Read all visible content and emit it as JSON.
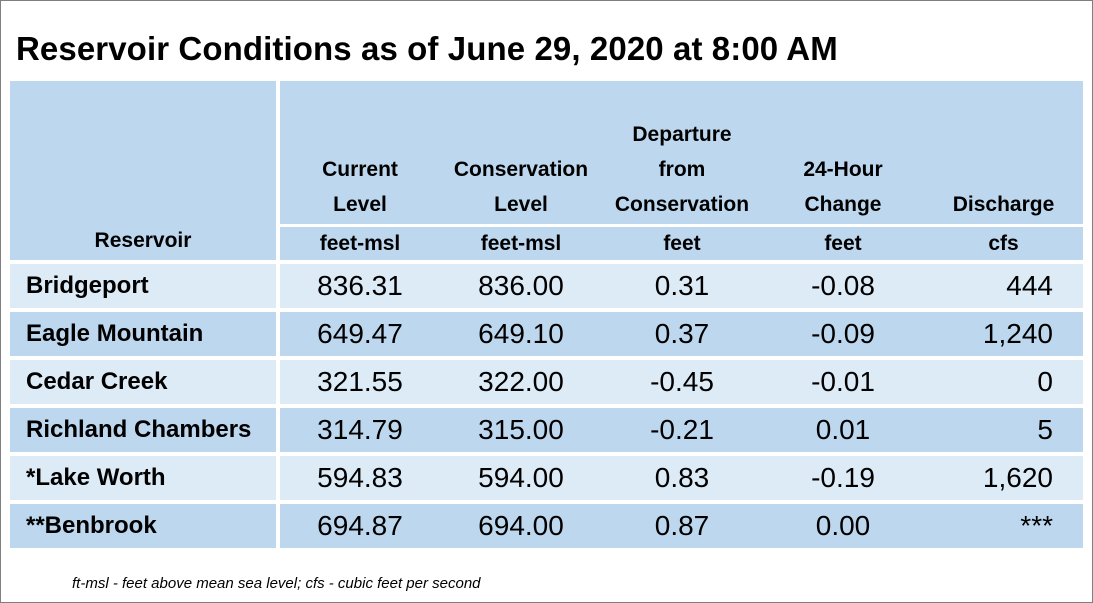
{
  "title": "Reservoir Conditions as of June 29, 2020 at 8:00 AM",
  "columns": [
    {
      "label_lines": [
        "Reservoir"
      ],
      "unit": ""
    },
    {
      "label_lines": [
        "Current",
        "Level"
      ],
      "unit": "feet-msl"
    },
    {
      "label_lines": [
        "Conservation",
        "Level"
      ],
      "unit": "feet-msl"
    },
    {
      "label_lines": [
        "Departure",
        "from",
        "Conservation"
      ],
      "unit": "feet"
    },
    {
      "label_lines": [
        "24-Hour",
        "Change"
      ],
      "unit": "feet"
    },
    {
      "label_lines": [
        "Discharge"
      ],
      "unit": "cfs"
    }
  ],
  "rows": [
    {
      "name": "Bridgeport",
      "current": "836.31",
      "conservation": "836.00",
      "departure": "0.31",
      "change": "-0.08",
      "discharge": "444"
    },
    {
      "name": "Eagle Mountain",
      "current": "649.47",
      "conservation": "649.10",
      "departure": "0.37",
      "change": "-0.09",
      "discharge": "1,240"
    },
    {
      "name": "Cedar Creek",
      "current": "321.55",
      "conservation": "322.00",
      "departure": "-0.45",
      "change": "-0.01",
      "discharge": "0"
    },
    {
      "name": "Richland Chambers",
      "current": "314.79",
      "conservation": "315.00",
      "departure": "-0.21",
      "change": "0.01",
      "discharge": "5"
    },
    {
      "name": "*Lake Worth",
      "current": "594.83",
      "conservation": "594.00",
      "departure": "0.83",
      "change": "-0.19",
      "discharge": "1,620"
    },
    {
      "name": "**Benbrook",
      "current": "694.87",
      "conservation": "694.00",
      "departure": "0.87",
      "change": "0.00",
      "discharge": "***"
    }
  ],
  "footnote": "ft-msl - feet above mean sea level; cfs - cubic feet per second",
  "colors": {
    "header_bg": "#bdd7ee",
    "row_light": "#ddebf7",
    "row_dark": "#bdd7ee",
    "grid": "#ffffff"
  }
}
